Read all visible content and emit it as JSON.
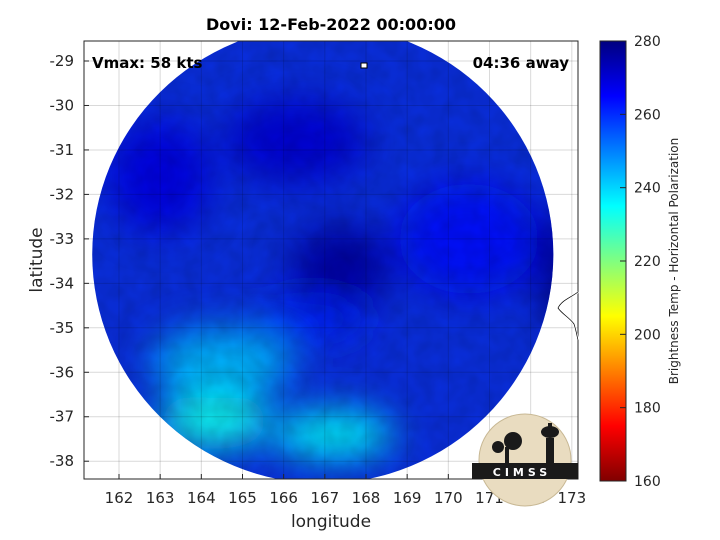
{
  "chart_data": {
    "type": "heatmap",
    "title": "Dovi: 12-Feb-2022 00:00:00",
    "xlabel": "longitude",
    "ylabel": "latitude",
    "xlim": [
      161.15,
      173.15
    ],
    "ylim": [
      -38.4,
      -28.55
    ],
    "x_ticks": [
      162,
      163,
      164,
      165,
      166,
      167,
      168,
      169,
      170,
      171,
      172,
      173
    ],
    "y_ticks": [
      -29,
      -30,
      -31,
      -32,
      -33,
      -34,
      -35,
      -36,
      -37,
      -38
    ],
    "grid": true,
    "annotations": {
      "vmax": "Vmax: 58 kts",
      "time_away": "04:36 away"
    },
    "colorbar": {
      "label": "Brightness Temp - Horizontal Polarization",
      "range": [
        160,
        280
      ],
      "ticks": [
        280,
        260,
        240,
        220,
        200,
        180,
        160
      ],
      "colormap": "jet",
      "colors": [
        "#800000",
        "#ff0000",
        "#ffff00",
        "#00ffff",
        "#0080ff",
        "#0000ff",
        "#000080"
      ]
    },
    "swath": {
      "center": [
        166.95,
        -33.35
      ],
      "radius_lon": 5.6,
      "radius_lat": 5.15
    },
    "features": [
      {
        "name": "cold eye core",
        "lon": 167.4,
        "lat": -33.6,
        "value": 276
      },
      {
        "name": "north wall",
        "lon": 166.3,
        "lat": -30.8,
        "value": 270
      },
      {
        "name": "east edge band",
        "lon": 172.7,
        "lat": -33.7,
        "value": 279
      },
      {
        "name": "southwest warm region",
        "lon": 164.3,
        "lat": -37.1,
        "value": 233
      },
      {
        "name": "south warm region",
        "lon": 167.2,
        "lat": -37.4,
        "value": 235
      },
      {
        "name": "central-west region",
        "lon": 164.5,
        "lat": -35.8,
        "value": 243
      },
      {
        "name": "east region",
        "lon": 170.5,
        "lat": -33.0,
        "value": 263
      },
      {
        "name": "northwest arc",
        "lon": 163.0,
        "lat": -31.6,
        "value": 268
      },
      {
        "name": "south-central arc",
        "lon": 166.7,
        "lat": -34.8,
        "value": 261
      }
    ]
  },
  "logo": {
    "text": "CIMSS"
  }
}
